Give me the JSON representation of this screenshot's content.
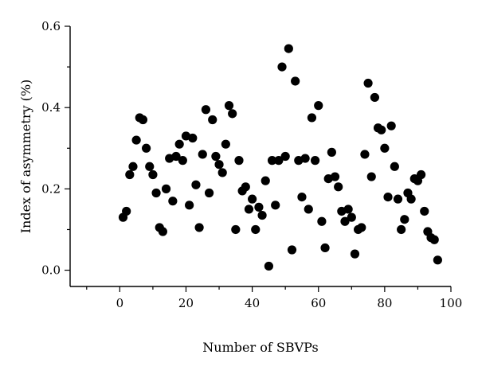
{
  "chart_data": {
    "type": "scatter",
    "title": "",
    "xlabel": "Number of SBVPs",
    "ylabel": "Index of asymmetry (%)",
    "xlim": [
      -15,
      100
    ],
    "ylim": [
      -0.04,
      0.6
    ],
    "xticks": [
      0,
      20,
      40,
      60,
      80,
      100
    ],
    "yticks": [
      0.0,
      0.2,
      0.4,
      0.6
    ],
    "ytick_labels": [
      "0.0",
      "0.2",
      "0.4",
      "0.6"
    ],
    "grid": false,
    "marker_color": "#000000",
    "series": [
      {
        "x": [
          1,
          2,
          3,
          4,
          5,
          6,
          7,
          8,
          9,
          10,
          11,
          12,
          13,
          14,
          15,
          16,
          17,
          18,
          19,
          20,
          21,
          22,
          23,
          24,
          25,
          26,
          27,
          28,
          29,
          30,
          31,
          32,
          33,
          34,
          35,
          36,
          37,
          38,
          39,
          40,
          41,
          42,
          43,
          44,
          45,
          46,
          47,
          48,
          49,
          50,
          51,
          52,
          53,
          54,
          55,
          56,
          57,
          58,
          59,
          60,
          61,
          62,
          63,
          64,
          65,
          66,
          67,
          68,
          69,
          70,
          71,
          72,
          73,
          74,
          75,
          76,
          77,
          78,
          79,
          80,
          81,
          82,
          83,
          84,
          85,
          86,
          87,
          88,
          89,
          90,
          91,
          92,
          93,
          94,
          95,
          96
        ],
        "y": [
          0.13,
          0.145,
          0.235,
          0.255,
          0.32,
          0.375,
          0.37,
          0.3,
          0.255,
          0.235,
          0.19,
          0.105,
          0.095,
          0.2,
          0.275,
          0.17,
          0.28,
          0.31,
          0.27,
          0.33,
          0.16,
          0.325,
          0.21,
          0.105,
          0.285,
          0.395,
          0.19,
          0.37,
          0.28,
          0.26,
          0.24,
          0.31,
          0.405,
          0.385,
          0.1,
          0.27,
          0.195,
          0.205,
          0.15,
          0.175,
          0.1,
          0.155,
          0.135,
          0.22,
          0.01,
          0.27,
          0.16,
          0.27,
          0.5,
          0.28,
          0.545,
          0.05,
          0.465,
          0.27,
          0.18,
          0.275,
          0.15,
          0.375,
          0.27,
          0.405,
          0.12,
          0.055,
          0.225,
          0.29,
          0.23,
          0.205,
          0.145,
          0.12,
          0.15,
          0.13,
          0.04,
          0.1,
          0.105,
          0.285,
          0.46,
          0.23,
          0.425,
          0.35,
          0.345,
          0.3,
          0.18,
          0.355,
          0.255,
          0.175,
          0.1,
          0.125,
          0.19,
          0.175,
          0.225,
          0.22,
          0.235,
          0.145,
          0.095,
          0.08,
          0.075,
          0.025
        ]
      }
    ]
  }
}
